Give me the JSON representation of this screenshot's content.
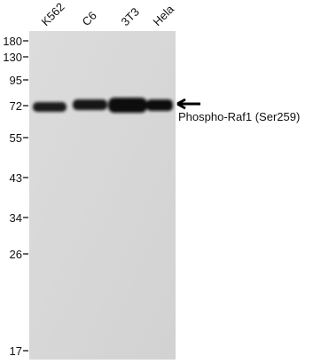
{
  "lanes": [
    "K562",
    "C6",
    "3T3",
    "Hela"
  ],
  "markers": [
    "180",
    "130",
    "95",
    "72",
    "55",
    "43",
    "34",
    "26",
    "17"
  ],
  "band_label": "Phospho-Raf1 (Ser259)"
}
